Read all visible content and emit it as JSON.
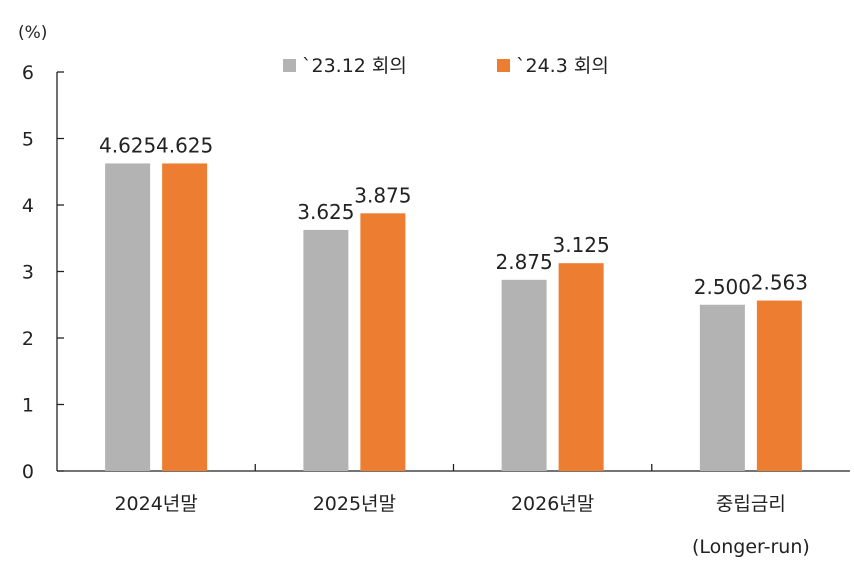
{
  "chart_data": {
    "type": "bar",
    "unit_label": "(%)",
    "ylim": [
      0,
      6
    ],
    "yticks": [
      0,
      1,
      2,
      3,
      4,
      5,
      6
    ],
    "categories": [
      [
        "2024년말"
      ],
      [
        "2025년말"
      ],
      [
        "2026년말"
      ],
      [
        "중립금리",
        "(Longer-run)"
      ]
    ],
    "series": [
      {
        "name": "`23.12 회의",
        "color": "#b3b3b3",
        "values": [
          4.625,
          3.625,
          2.875,
          2.5
        ],
        "labels": [
          "4.625",
          "3.625",
          "2.875",
          "2.500"
        ]
      },
      {
        "name": "`24.3 회의",
        "color": "#ed7d31",
        "values": [
          4.625,
          3.875,
          3.125,
          2.563
        ],
        "labels": [
          "4.625",
          "3.875",
          "3.125",
          "2.563"
        ]
      }
    ],
    "legend_position": "top",
    "grid": false
  }
}
